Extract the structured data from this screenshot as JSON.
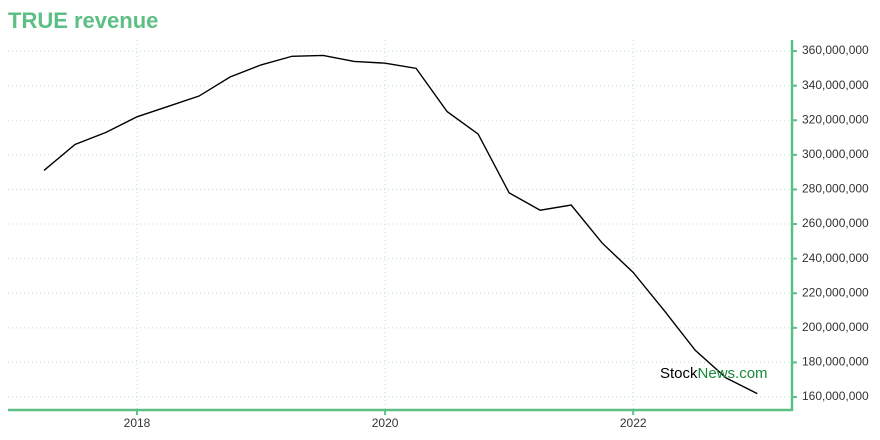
{
  "chart_data": {
    "type": "line",
    "title": "TRUE revenue",
    "x": [
      2017.25,
      2017.5,
      2017.75,
      2018,
      2018.25,
      2018.5,
      2018.75,
      2019,
      2019.25,
      2019.5,
      2019.75,
      2020,
      2020.25,
      2020.5,
      2020.75,
      2021,
      2021.25,
      2021.5,
      2021.75,
      2022,
      2022.25,
      2022.5,
      2022.75,
      2023
    ],
    "series": [
      {
        "name": "TRUE revenue",
        "color": "#000000",
        "values": [
          291000000,
          306000000,
          313000000,
          322000000,
          328000000,
          334000000,
          345000000,
          352000000,
          357000000,
          357500000,
          354000000,
          353000000,
          350000000,
          325000000,
          312000000,
          278000000,
          268000000,
          271000000,
          249000000,
          232000000,
          210000000,
          187000000,
          171000000,
          162000000
        ]
      }
    ],
    "xlim": [
      2016.96,
      2023.28
    ],
    "xticks": [
      2018,
      2020,
      2022
    ],
    "ylim": [
      152500000,
      366400000
    ],
    "yticks": [
      {
        "value": 160000000,
        "label": "160,000,000"
      },
      {
        "value": 180000000,
        "label": "180,000,000"
      },
      {
        "value": 200000000,
        "label": "200,000,000"
      },
      {
        "value": 220000000,
        "label": "220,000,000"
      },
      {
        "value": 240000000,
        "label": "240,000,000"
      },
      {
        "value": 260000000,
        "label": "260,000,000"
      },
      {
        "value": 280000000,
        "label": "280,000,000"
      },
      {
        "value": 300000000,
        "label": "300,000,000"
      },
      {
        "value": 320000000,
        "label": "320,000,000"
      },
      {
        "value": 340000000,
        "label": "340,000,000"
      },
      {
        "value": 360000000,
        "label": "360,000,000"
      }
    ],
    "grid": true,
    "axis_color": "#5cbf84",
    "watermark": {
      "prefix": "Stock",
      "suffix": "News.com"
    }
  }
}
